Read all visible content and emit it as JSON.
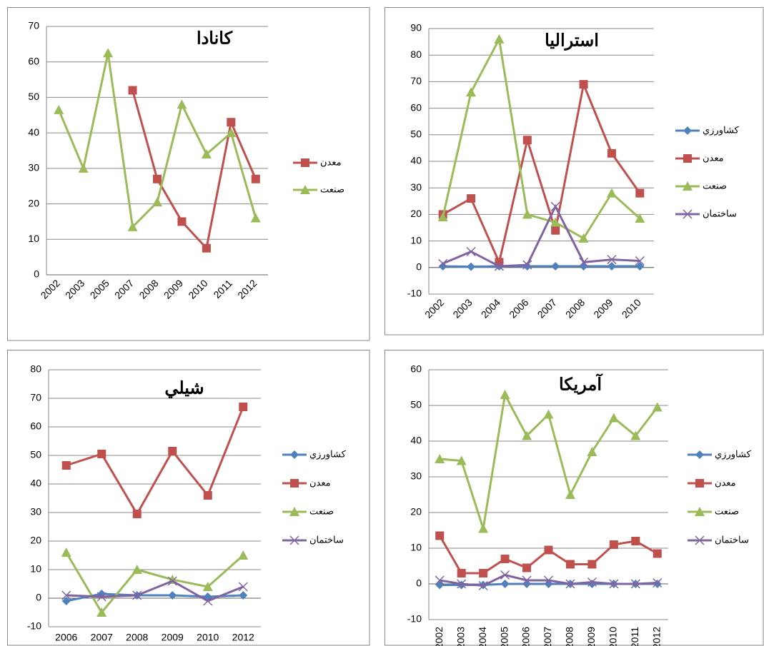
{
  "chart_data": [
    {
      "type": "line",
      "title": "كانادا",
      "categories": [
        "2002",
        "2003",
        "2005",
        "2007",
        "2008",
        "2009",
        "2010",
        "2011",
        "2012"
      ],
      "series": [
        {
          "name": "معدن",
          "color": "#c0504d",
          "marker": "square",
          "values": [
            null,
            null,
            null,
            52,
            27,
            15,
            7.5,
            43,
            27
          ]
        },
        {
          "name": "صنعت",
          "color": "#9bbb59",
          "marker": "triangle",
          "values": [
            46.5,
            30,
            62.5,
            13.5,
            20.5,
            48,
            34,
            40,
            16
          ]
        }
      ],
      "ylim": [
        0,
        70
      ],
      "yticks": [
        0,
        10,
        20,
        30,
        40,
        50,
        60,
        70
      ],
      "grid": true,
      "legend": "right"
    },
    {
      "type": "line",
      "title": "استراليا",
      "categories": [
        "2002",
        "2003",
        "2004",
        "2006",
        "2007",
        "2008",
        "2009",
        "2010"
      ],
      "series": [
        {
          "name": "كشاورزي",
          "color": "#4f81bd",
          "marker": "diamond",
          "values": [
            0.5,
            0.3,
            0.5,
            0.5,
            0.5,
            0.5,
            0.5,
            0.5
          ]
        },
        {
          "name": "معدن",
          "color": "#c0504d",
          "marker": "square",
          "values": [
            20,
            26,
            2,
            48,
            14,
            69,
            43,
            28
          ]
        },
        {
          "name": "صنعت",
          "color": "#9bbb59",
          "marker": "triangle",
          "values": [
            19,
            66,
            86,
            20,
            17,
            11,
            28,
            18.5
          ]
        },
        {
          "name": "ساختمان",
          "color": "#8064a2",
          "marker": "x",
          "values": [
            1.5,
            6,
            0.5,
            1,
            23,
            2,
            3,
            2.5
          ]
        }
      ],
      "ylim": [
        -10,
        90
      ],
      "yticks": [
        -10,
        0,
        10,
        20,
        30,
        40,
        50,
        60,
        70,
        80,
        90
      ],
      "grid": true,
      "legend": "right"
    },
    {
      "type": "line",
      "title": "شيلي",
      "categories": [
        "2006",
        "2007",
        "2008",
        "2009",
        "2010",
        "2012"
      ],
      "series": [
        {
          "name": "كشاورزي",
          "color": "#4f81bd",
          "marker": "diamond",
          "values": [
            -1,
            1.5,
            1,
            1,
            0.5,
            1
          ]
        },
        {
          "name": "معدن",
          "color": "#c0504d",
          "marker": "square",
          "values": [
            46.5,
            50.5,
            29.5,
            51.5,
            36,
            67
          ]
        },
        {
          "name": "صنعت",
          "color": "#9bbb59",
          "marker": "triangle",
          "values": [
            16,
            -5,
            10,
            6.5,
            4,
            15
          ]
        },
        {
          "name": "ساختمان",
          "color": "#8064a2",
          "marker": "x",
          "values": [
            1,
            0.5,
            1,
            6,
            -1,
            4
          ]
        }
      ],
      "ylim": [
        -10,
        80
      ],
      "yticks": [
        -10,
        0,
        10,
        20,
        30,
        40,
        50,
        60,
        70,
        80
      ],
      "grid": true,
      "legend": "right"
    },
    {
      "type": "line",
      "title": "آمريكا",
      "categories": [
        "2002",
        "2003",
        "2004",
        "2005",
        "2006",
        "2007",
        "2008",
        "2009",
        "2010",
        "2011",
        "2012"
      ],
      "series": [
        {
          "name": "كشاورزي",
          "color": "#4f81bd",
          "marker": "diamond",
          "values": [
            -0.3,
            -0.3,
            -0.3,
            0,
            0,
            0,
            0,
            0,
            0,
            0,
            0
          ]
        },
        {
          "name": "معدن",
          "color": "#c0504d",
          "marker": "square",
          "values": [
            13.5,
            3,
            3,
            7,
            4.5,
            9.5,
            5.5,
            5.5,
            11,
            12,
            8.5
          ]
        },
        {
          "name": "صنعت",
          "color": "#9bbb59",
          "marker": "triangle",
          "values": [
            35,
            34.5,
            15.5,
            53,
            41.5,
            47.5,
            25,
            37,
            46.5,
            41.5,
            49.5
          ]
        },
        {
          "name": "ساختمان",
          "color": "#8064a2",
          "marker": "x",
          "values": [
            1,
            0,
            -0.5,
            2.5,
            1,
            1,
            0,
            0.5,
            0,
            0,
            0.3
          ]
        }
      ],
      "ylim": [
        -10,
        60
      ],
      "yticks": [
        -10,
        0,
        10,
        20,
        30,
        40,
        50,
        60
      ],
      "grid": true,
      "legend": "right"
    }
  ]
}
